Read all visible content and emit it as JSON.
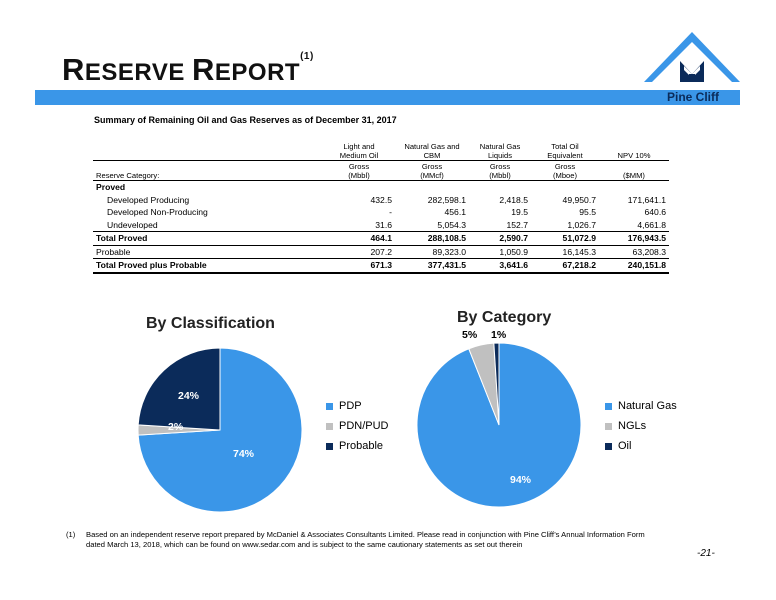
{
  "header": {
    "title_first_initial": "R",
    "title_first_rest": "ESERVE",
    "title_second_initial": "R",
    "title_second_rest": "EPORT",
    "title_superscript": "(1)",
    "logo_text": "Pine Cliff"
  },
  "colors": {
    "accent_blue": "#3a96e8",
    "dark_navy": "#0b2b5a",
    "gray": "#c0c0c0"
  },
  "table": {
    "subtitle": "Summary of Remaining Oil and Gas Reserves as of December 31, 2017",
    "col_headers": [
      {
        "line1": "Light and",
        "line2": "Medium Oil"
      },
      {
        "line1": "Natural Gas and",
        "line2": "CBM"
      },
      {
        "line1": "Natural Gas",
        "line2": "Liquids"
      },
      {
        "line1": "Total Oil",
        "line2": "Equivalent"
      },
      {
        "line1": "",
        "line2": "NPV 10%"
      }
    ],
    "category_label": "Reserve Category:",
    "units": [
      {
        "line1": "Gross",
        "line2": "(Mbbl)"
      },
      {
        "line1": "Gross",
        "line2": "(MMcf)"
      },
      {
        "line1": "Gross",
        "line2": "(Mbbl)"
      },
      {
        "line1": "Gross",
        "line2": "(Mboe)"
      },
      {
        "line1": "",
        "line2": "($MM)"
      }
    ],
    "proved_label": "Proved",
    "rows": {
      "dev_producing": {
        "label": "Developed Producing",
        "values": [
          "432.5",
          "282,598.1",
          "2,418.5",
          "49,950.7",
          "171,641.1"
        ]
      },
      "dev_non_producing": {
        "label": "Developed Non-Producing",
        "values": [
          "-",
          "456.1",
          "19.5",
          "95.5",
          "640.6"
        ]
      },
      "undeveloped": {
        "label": "Undeveloped",
        "values": [
          "31.6",
          "5,054.3",
          "152.7",
          "1,026.7",
          "4,661.8"
        ]
      },
      "total_proved": {
        "label": "Total Proved",
        "values": [
          "464.1",
          "288,108.5",
          "2,590.7",
          "51,072.9",
          "176,943.5"
        ]
      },
      "probable": {
        "label": "Probable",
        "values": [
          "207.2",
          "89,323.0",
          "1,050.9",
          "16,145.3",
          "63,208.3"
        ]
      },
      "total_pp": {
        "label": "Total Proved plus Probable",
        "values": [
          "671.3",
          "377,431.5",
          "3,641.6",
          "67,218.2",
          "240,151.8"
        ]
      }
    }
  },
  "chart_data": [
    {
      "type": "pie",
      "title": "By Classification",
      "categories": [
        "PDP",
        "PDN/PUD",
        "Probable"
      ],
      "values": [
        74,
        2,
        24
      ],
      "value_labels": [
        "74%",
        "2%",
        "24%"
      ],
      "colors": [
        "#3a96e8",
        "#c0c0c0",
        "#0b2b5a"
      ],
      "legend": "right"
    },
    {
      "type": "pie",
      "title": "By Category",
      "categories": [
        "Natural Gas",
        "NGLs",
        "Oil"
      ],
      "values": [
        94,
        5,
        1
      ],
      "value_labels": [
        "94%",
        "5%",
        "1%"
      ],
      "colors": [
        "#3a96e8",
        "#c0c0c0",
        "#0b2b5a"
      ],
      "legend": "right"
    }
  ],
  "footnote": {
    "number": "(1)",
    "line1": "Based on an independent reserve report prepared by McDaniel & Associates Consultants Limited.  Please read in conjunction with Pine Cliff’s Annual Information Form",
    "line2": "dated March 13, 2018, which can be found on www.sedar.com and is subject to the same cautionary statements as set out therein"
  },
  "page_number": "-21-"
}
